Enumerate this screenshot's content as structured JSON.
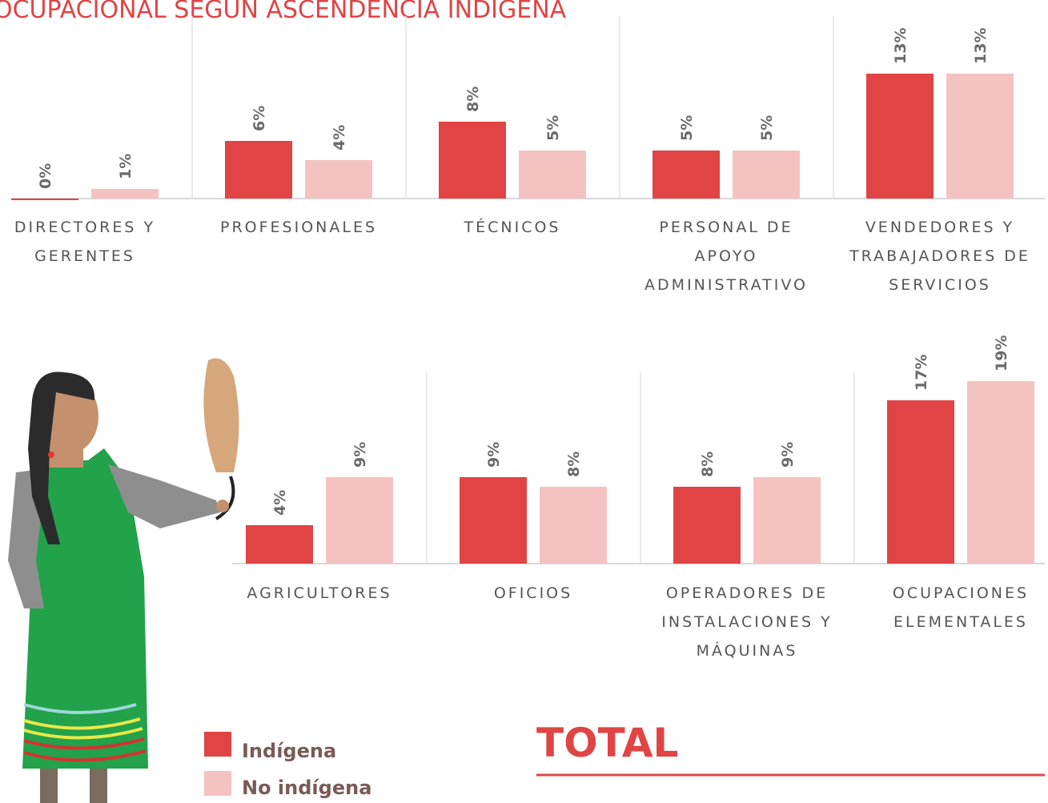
{
  "chart_data": [
    {
      "type": "bar",
      "title": "OCUPACIONAL SEGÚN ASCENDENCIA INDÍGENA",
      "categories": [
        "DIRECTORES Y GERENTES",
        "PROFESIONALES",
        "TÉCNICOS",
        "PERSONAL DE APOYO ADMINISTRATIVO",
        "VENDEDORES Y TRABAJADORES DE SERVICIOS"
      ],
      "series": [
        {
          "name": "Indígena",
          "color": "#e04444",
          "values": [
            0,
            6,
            8,
            5,
            13
          ],
          "value_labels": [
            "0%",
            "6%",
            "8%",
            "5%",
            "13%"
          ]
        },
        {
          "name": "No indígena",
          "color": "#f5c2c2",
          "values": [
            1,
            4,
            5,
            5,
            13
          ],
          "value_labels": [
            "1%",
            "4%",
            "5%",
            "5%",
            "13%"
          ]
        }
      ],
      "ylim": [
        0,
        20
      ]
    },
    {
      "type": "bar",
      "categories": [
        "AGRICULTORES",
        "OFICIOS",
        "OPERADORES DE INSTALACIONES Y MÁQUINAS",
        "OCUPACIONES ELEMENTALES"
      ],
      "series": [
        {
          "name": "Indígena",
          "color": "#e04444",
          "values": [
            4,
            9,
            8,
            17
          ],
          "value_labels": [
            "4%",
            "9%",
            "8%",
            "17%"
          ]
        },
        {
          "name": "No indígena",
          "color": "#f5c2c2",
          "values": [
            9,
            8,
            9,
            19
          ],
          "value_labels": [
            "9%",
            "8%",
            "9%",
            "19%"
          ]
        }
      ],
      "ylim": [
        0,
        20
      ]
    }
  ],
  "footer": {
    "title": "TOTAL"
  }
}
